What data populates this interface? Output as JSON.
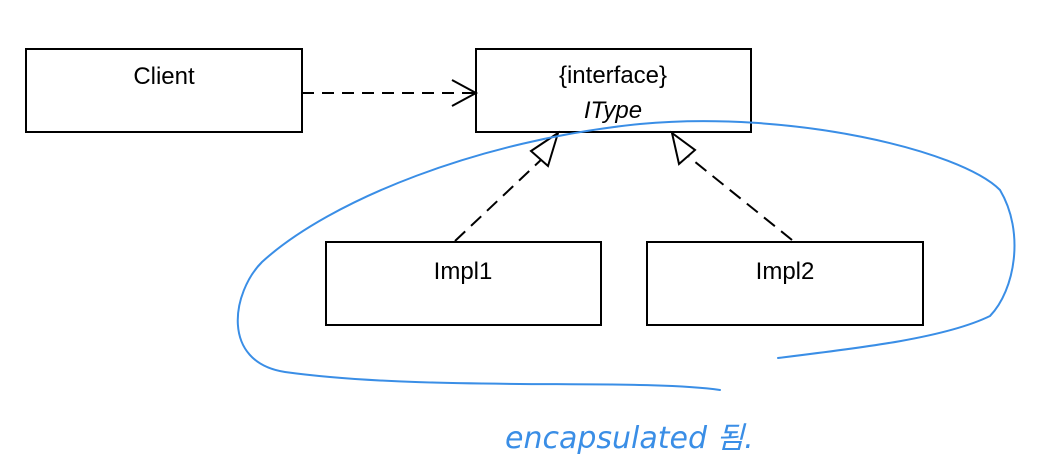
{
  "boxes": {
    "client": {
      "label": "Client"
    },
    "interface": {
      "stereotype": "{interface}",
      "name": "IType"
    },
    "impl1": {
      "label": "Impl1"
    },
    "impl2": {
      "label": "Impl2"
    }
  },
  "annotation": {
    "text": "encapsulated 됨.",
    "color": "#3a8ee6"
  },
  "colors": {
    "line": "#000000",
    "fill": "#ffffff"
  }
}
